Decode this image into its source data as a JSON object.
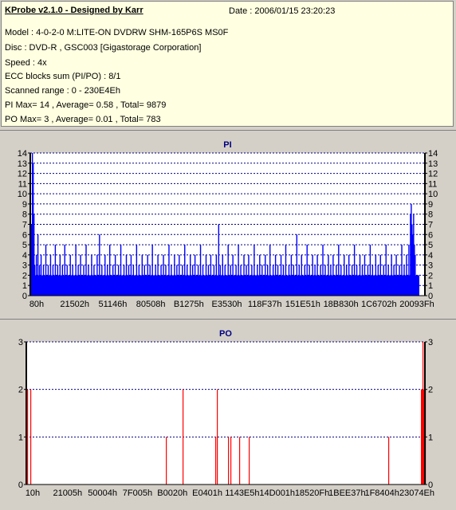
{
  "header": {
    "title": "KProbe v2.1.0 - Designed by Karr",
    "date": "Date : 2006/01/15 23:20:23",
    "lines": [
      "Model : 4-0-2-0 M:LITE-ON DVDRW SHM-165P6S MS0F",
      "Disc : DVD-R , GSC003 [Gigastorage Corporation]",
      "Speed : 4x",
      "ECC blocks sum (PI/PO) : 8/1",
      "Scanned range : 0 - 230E4Eh",
      "PI Max= 14 , Average= 0.58 , Total= 9879",
      "PO Max= 3 , Average= 0.01 , Total= 783"
    ]
  },
  "colors": {
    "pi_bar": "#0000ff",
    "po_bar": "#ff0000",
    "plot_bg": "#ffffff",
    "grid": "#000080",
    "title_text": "#000080"
  },
  "chart_data": [
    {
      "type": "bar",
      "title": "PI",
      "xlabel": "",
      "ylabel": "",
      "ylim": [
        0,
        14
      ],
      "y_ticks": [
        0,
        1,
        2,
        3,
        4,
        5,
        6,
        7,
        8,
        9,
        10,
        11,
        12,
        13,
        14
      ],
      "x_tick_labels": [
        "80h",
        "21502h",
        "51146h",
        "80508h",
        "B1275h",
        "E3530h",
        "118F37h",
        "151E51h",
        "18B830h",
        "1C6702h",
        "20093Fh"
      ],
      "baseline": 2,
      "series": [
        {
          "values": [
            [
              1,
              7
            ],
            [
              2,
              14
            ],
            [
              3,
              13
            ],
            [
              4,
              8
            ],
            [
              5,
              3
            ],
            [
              7,
              4
            ],
            [
              9,
              6
            ],
            [
              11,
              3
            ],
            [
              13,
              4
            ],
            [
              16,
              3
            ],
            [
              19,
              5
            ],
            [
              22,
              3
            ],
            [
              25,
              4
            ],
            [
              28,
              3
            ],
            [
              31,
              5
            ],
            [
              34,
              3
            ],
            [
              37,
              4
            ],
            [
              40,
              3
            ],
            [
              43,
              5
            ],
            [
              46,
              3
            ],
            [
              50,
              4
            ],
            [
              53,
              3
            ],
            [
              57,
              5
            ],
            [
              60,
              3
            ],
            [
              63,
              4
            ],
            [
              67,
              3
            ],
            [
              70,
              5
            ],
            [
              73,
              3
            ],
            [
              77,
              4
            ],
            [
              80,
              3
            ],
            [
              84,
              4
            ],
            [
              87,
              6
            ],
            [
              90,
              3
            ],
            [
              94,
              4
            ],
            [
              97,
              3
            ],
            [
              100,
              5
            ],
            [
              104,
              3
            ],
            [
              107,
              4
            ],
            [
              111,
              3
            ],
            [
              114,
              5
            ],
            [
              118,
              3
            ],
            [
              121,
              4
            ],
            [
              124,
              3
            ],
            [
              127,
              4
            ],
            [
              130,
              3
            ],
            [
              134,
              5
            ],
            [
              137,
              3
            ],
            [
              141,
              4
            ],
            [
              144,
              3
            ],
            [
              148,
              4
            ],
            [
              151,
              3
            ],
            [
              154,
              5
            ],
            [
              158,
              3
            ],
            [
              161,
              4
            ],
            [
              165,
              3
            ],
            [
              168,
              4
            ],
            [
              171,
              3
            ],
            [
              175,
              5
            ],
            [
              178,
              3
            ],
            [
              182,
              4
            ],
            [
              185,
              3
            ],
            [
              188,
              4
            ],
            [
              192,
              3
            ],
            [
              195,
              5
            ],
            [
              198,
              3
            ],
            [
              202,
              4
            ],
            [
              205,
              3
            ],
            [
              208,
              4
            ],
            [
              212,
              3
            ],
            [
              215,
              5
            ],
            [
              218,
              3
            ],
            [
              222,
              4
            ],
            [
              225,
              3
            ],
            [
              228,
              4
            ],
            [
              232,
              3
            ],
            [
              235,
              4
            ],
            [
              238,
              7
            ],
            [
              240,
              3
            ],
            [
              243,
              4
            ],
            [
              246,
              3
            ],
            [
              250,
              5
            ],
            [
              253,
              3
            ],
            [
              256,
              4
            ],
            [
              260,
              3
            ],
            [
              263,
              5
            ],
            [
              266,
              3
            ],
            [
              270,
              4
            ],
            [
              273,
              3
            ],
            [
              276,
              4
            ],
            [
              280,
              3
            ],
            [
              283,
              5
            ],
            [
              287,
              3
            ],
            [
              290,
              4
            ],
            [
              293,
              3
            ],
            [
              297,
              4
            ],
            [
              300,
              3
            ],
            [
              303,
              5
            ],
            [
              307,
              3
            ],
            [
              310,
              4
            ],
            [
              313,
              3
            ],
            [
              317,
              4
            ],
            [
              320,
              3
            ],
            [
              323,
              5
            ],
            [
              327,
              3
            ],
            [
              330,
              4
            ],
            [
              333,
              3
            ],
            [
              337,
              6
            ],
            [
              340,
              3
            ],
            [
              343,
              4
            ],
            [
              347,
              3
            ],
            [
              350,
              5
            ],
            [
              353,
              3
            ],
            [
              357,
              4
            ],
            [
              360,
              3
            ],
            [
              363,
              4
            ],
            [
              367,
              3
            ],
            [
              370,
              5
            ],
            [
              373,
              3
            ],
            [
              377,
              4
            ],
            [
              380,
              3
            ],
            [
              383,
              4
            ],
            [
              387,
              3
            ],
            [
              390,
              5
            ],
            [
              393,
              3
            ],
            [
              397,
              4
            ],
            [
              400,
              3
            ],
            [
              403,
              4
            ],
            [
              407,
              3
            ],
            [
              410,
              5
            ],
            [
              413,
              3
            ],
            [
              417,
              4
            ],
            [
              420,
              3
            ],
            [
              423,
              4
            ],
            [
              427,
              3
            ],
            [
              430,
              5
            ],
            [
              433,
              3
            ],
            [
              437,
              4
            ],
            [
              440,
              3
            ],
            [
              443,
              4
            ],
            [
              447,
              3
            ],
            [
              450,
              5
            ],
            [
              453,
              3
            ],
            [
              457,
              4
            ],
            [
              460,
              3
            ],
            [
              463,
              4
            ],
            [
              467,
              3
            ],
            [
              470,
              5
            ],
            [
              473,
              3
            ],
            [
              476,
              4
            ],
            [
              479,
              5
            ],
            [
              481,
              8
            ],
            [
              482,
              9
            ],
            [
              483,
              7
            ],
            [
              484,
              6
            ],
            [
              485,
              8
            ],
            [
              486,
              5
            ],
            [
              487,
              4
            ]
          ]
        }
      ]
    },
    {
      "type": "bar",
      "title": "PO",
      "xlabel": "",
      "ylabel": "",
      "ylim": [
        0,
        3
      ],
      "y_ticks": [
        0,
        1,
        2,
        3
      ],
      "x_tick_labels": [
        "10h",
        "21005h",
        "50004h",
        "7F005h",
        "B0020h",
        "E0401h",
        "1143E5h",
        "14D001h",
        "18520Fh",
        "1BEE37h",
        "1F8404h",
        "23074Eh"
      ],
      "series": [
        {
          "values": [
            [
              1,
              2
            ],
            [
              5,
              2
            ],
            [
              175,
              1
            ],
            [
              196,
              2
            ],
            [
              237,
              1
            ],
            [
              239,
              2
            ],
            [
              253,
              1
            ],
            [
              256,
              1
            ],
            [
              267,
              1
            ],
            [
              279,
              1
            ],
            [
              454,
              1
            ],
            [
              495,
              2
            ],
            [
              496,
              2
            ],
            [
              497,
              3
            ],
            [
              498,
              2
            ],
            [
              499,
              2
            ],
            [
              500,
              2
            ]
          ]
        }
      ]
    }
  ]
}
